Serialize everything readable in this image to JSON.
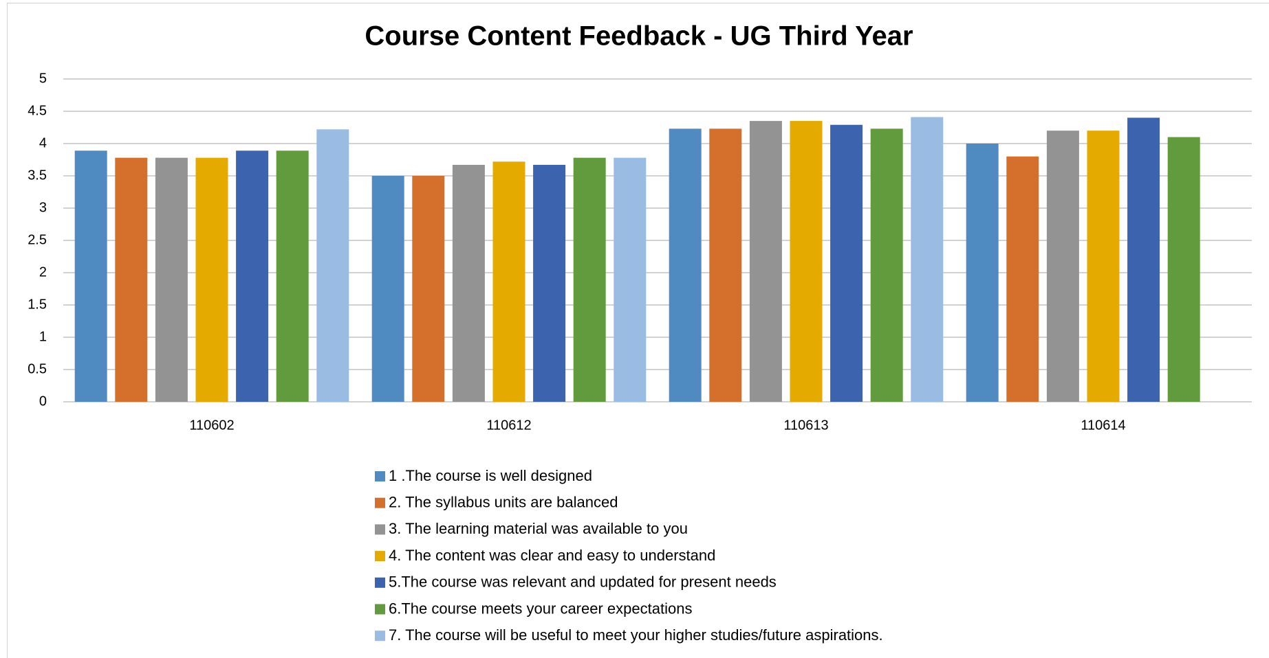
{
  "chart_data": {
    "type": "bar",
    "title": "Course Content Feedback - UG Third Year",
    "categories": [
      "110602",
      "110612",
      "110613",
      "110614"
    ],
    "series": [
      {
        "name": "1 .The course is well designed",
        "color": "#4f8bc0",
        "values": [
          3.89,
          3.5,
          4.23,
          4.0
        ]
      },
      {
        "name": "2. The syllabus units are balanced",
        "color": "#d46f2c",
        "values": [
          3.78,
          3.5,
          4.23,
          3.8
        ]
      },
      {
        "name": "3. The learning material was available to you",
        "color": "#939393",
        "values": [
          3.78,
          3.67,
          4.35,
          4.2
        ]
      },
      {
        "name": "4. The content was clear and easy to understand",
        "color": "#e4aa00",
        "values": [
          3.78,
          3.72,
          4.35,
          4.2
        ]
      },
      {
        "name": "5.The course was relevant and updated for present needs",
        "color": "#3b63ae",
        "values": [
          3.89,
          3.67,
          4.29,
          4.4
        ]
      },
      {
        "name": "6.The course meets your career expectations",
        "color": "#629b3e",
        "values": [
          3.89,
          3.78,
          4.23,
          4.1
        ]
      },
      {
        "name": "7. The course will be useful to meet your higher studies/future aspirations.",
        "color": "#9bbce2",
        "values": [
          4.22,
          3.78,
          4.41,
          null
        ]
      }
    ],
    "ylim": [
      0,
      5
    ],
    "yticks": [
      0,
      0.5,
      1,
      1.5,
      2,
      2.5,
      3,
      3.5,
      4,
      4.5,
      5
    ],
    "grid": true,
    "legend": "bottom"
  }
}
